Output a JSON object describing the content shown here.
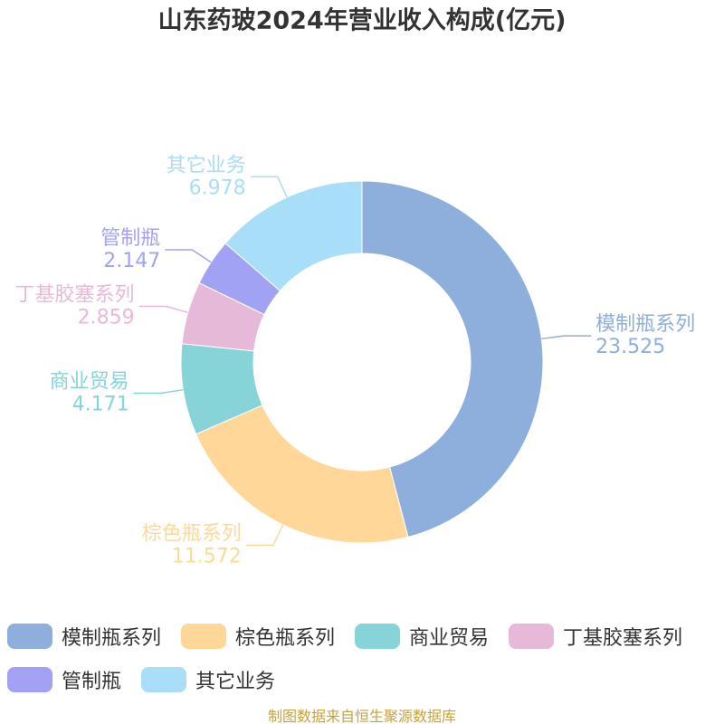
{
  "chart_data": {
    "type": "pie",
    "title": "山东药玻2024年营业收入构成(亿元)",
    "categories": [
      "模制瓶系列",
      "棕色瓶系列",
      "商业贸易",
      "丁基胶塞系列",
      "管制瓶",
      "其它业务"
    ],
    "values": [
      23.525,
      11.572,
      4.171,
      2.859,
      2.147,
      6.978
    ],
    "colors": [
      "#8eaedb",
      "#ffd899",
      "#86d4d8",
      "#e7b9d9",
      "#a2a2f4",
      "#a8def8"
    ],
    "legend": "bottom",
    "source": "制图数据来自恒生聚源数据库"
  }
}
